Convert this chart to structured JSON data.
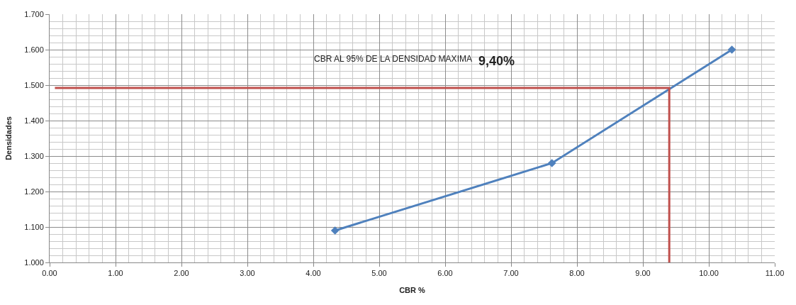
{
  "chart_data": {
    "type": "line",
    "xlabel": "CBR %",
    "ylabel": "Densidades",
    "annotations": [
      "CBR AL 95% DE LA DENSIDAD MAXIMA",
      "9,40%"
    ],
    "series": [
      {
        "color": "#4f81bd",
        "x": [
          4.33,
          7.62,
          10.35
        ],
        "values": [
          1.09,
          1.28,
          1.6
        ],
        "marker": "diamond"
      },
      {
        "color": "#c0504d",
        "x": [
          0.08,
          9.4,
          9.4
        ],
        "values": [
          1.492,
          1.492,
          1.0
        ],
        "marker": "none"
      }
    ],
    "xlim": [
      0,
      11
    ],
    "ylim": [
      1.0,
      1.7
    ],
    "xticks": [
      {
        "value": 0,
        "label": "0.00"
      },
      {
        "value": 1,
        "label": "1.00"
      },
      {
        "value": 2,
        "label": "2.00"
      },
      {
        "value": 3,
        "label": "3.00"
      },
      {
        "value": 4,
        "label": "4.00"
      },
      {
        "value": 5,
        "label": "5.00"
      },
      {
        "value": 6,
        "label": "6.00"
      },
      {
        "value": 7,
        "label": "7.00"
      },
      {
        "value": 8,
        "label": "8.00"
      },
      {
        "value": 9,
        "label": "9.00"
      },
      {
        "value": 10,
        "label": "10.00"
      },
      {
        "value": 11,
        "label": "11.00"
      }
    ],
    "yticks": [
      {
        "value": 1.0,
        "label": "1.000"
      },
      {
        "value": 1.1,
        "label": "1.100"
      },
      {
        "value": 1.2,
        "label": "1.200"
      },
      {
        "value": 1.3,
        "label": "1.300"
      },
      {
        "value": 1.4,
        "label": "1.400"
      },
      {
        "value": 1.5,
        "label": "1.500"
      },
      {
        "value": 1.6,
        "label": "1.600"
      },
      {
        "value": 1.7,
        "label": "1.700"
      }
    ],
    "grid": true,
    "line_style": "solid"
  }
}
